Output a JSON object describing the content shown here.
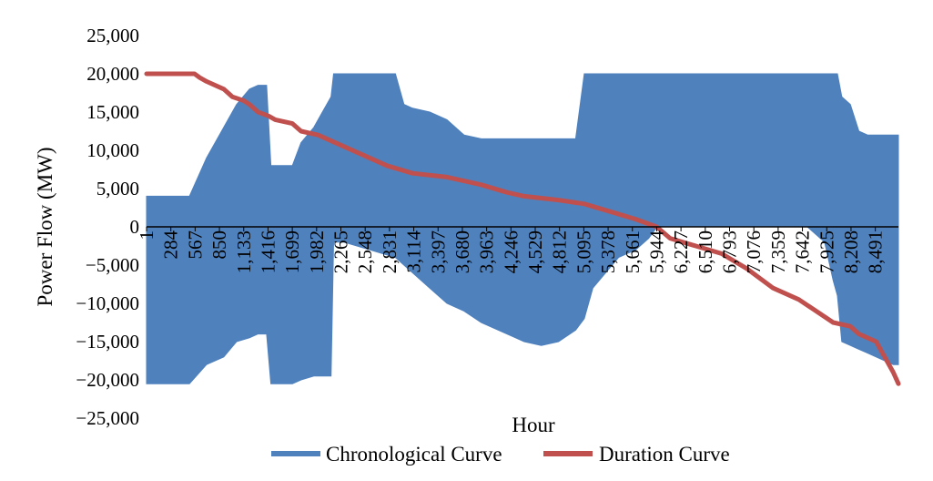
{
  "chart_data": {
    "type": "line",
    "title": "",
    "xlabel": "Hour",
    "ylabel": "Power Flow (MW)",
    "ylim": [
      -25000,
      25000
    ],
    "xlim": [
      1,
      8760
    ],
    "yticks": [
      25000,
      20000,
      15000,
      10000,
      5000,
      0,
      -5000,
      -10000,
      -15000,
      -20000,
      -25000
    ],
    "ytick_labels": [
      "25,000",
      "20,000",
      "15,000",
      "10,000",
      "5,000",
      "0",
      "−5,000",
      "−10,000",
      "−15,000",
      "−20,000",
      "−25,000"
    ],
    "xticks": [
      1,
      284,
      567,
      850,
      1133,
      1416,
      1699,
      1982,
      2265,
      2548,
      2831,
      3114,
      3397,
      3680,
      3963,
      4246,
      4529,
      4812,
      5095,
      5378,
      5661,
      5944,
      6227,
      6510,
      6793,
      7076,
      7359,
      7642,
      7925,
      8208,
      8491
    ],
    "xtick_labels": [
      "1",
      "284",
      "567",
      "850",
      "1,133",
      "1,416",
      "1,699",
      "1,982",
      "2,265",
      "2,548",
      "2,831",
      "3,114",
      "3,397",
      "3,680",
      "3,963",
      "4,246",
      "4,529",
      "4,812",
      "5,095",
      "5,378",
      "5,661",
      "5,944",
      "6,227",
      "6,510",
      "6,793",
      "7,076",
      "7,359",
      "7,642",
      "7,925",
      "8,208",
      "8,491"
    ],
    "grid": false,
    "legend": "bottom",
    "series": [
      {
        "name": "Chronological Curve",
        "color": "#4f81bd",
        "style": "band",
        "x": [
          1,
          200,
          500,
          700,
          900,
          1050,
          1200,
          1300,
          1400,
          1450,
          1550,
          1700,
          1800,
          1950,
          2050,
          2150,
          2180,
          2300,
          2600,
          2900,
          3000,
          3100,
          3300,
          3500,
          3700,
          3900,
          4100,
          4300,
          4400,
          4600,
          4800,
          5000,
          5100,
          5200,
          5500,
          5700,
          5850,
          5950,
          6300,
          6600,
          6800,
          6900,
          7000,
          7100,
          7300,
          7500,
          7700,
          7900,
          8000,
          8050,
          8100,
          8200,
          8300,
          8400,
          8500,
          8600,
          8700,
          8760
        ],
        "upper": [
          4000,
          4000,
          4000,
          9000,
          13000,
          16000,
          18000,
          18500,
          18500,
          8000,
          8000,
          8000,
          11000,
          13000,
          15000,
          17000,
          20000,
          20000,
          20000,
          20000,
          16000,
          15500,
          15000,
          14000,
          12000,
          11500,
          11500,
          11500,
          11500,
          11500,
          11500,
          11500,
          20000,
          20000,
          20000,
          20000,
          20000,
          20000,
          20000,
          20000,
          20000,
          20000,
          20000,
          20000,
          20000,
          20000,
          20000,
          20000,
          20000,
          20000,
          17000,
          16000,
          12500,
          12000,
          12000,
          12000,
          12000,
          12000
        ],
        "lower": [
          -20500,
          -20500,
          -20500,
          -18000,
          -17000,
          -15000,
          -14500,
          -14000,
          -14000,
          -20500,
          -20500,
          -20500,
          -20000,
          -19500,
          -19500,
          -19500,
          -2000,
          -2000,
          -3000,
          -4000,
          -5000,
          -6000,
          -8000,
          -10000,
          -11000,
          -12500,
          -13500,
          -14500,
          -15000,
          -15500,
          -15000,
          -13500,
          -12000,
          -8000,
          -4000,
          -3000,
          -1500,
          0,
          0,
          0,
          0,
          0,
          0,
          0,
          0,
          0,
          0,
          -2000,
          -7000,
          -9000,
          -15000,
          -15500,
          -16000,
          -16500,
          -17000,
          -17500,
          -18000,
          -18000
        ]
      },
      {
        "name": "Duration Curve",
        "color": "#c0504d",
        "style": "line",
        "x": [
          1,
          560,
          620,
          700,
          900,
          1000,
          1130,
          1200,
          1300,
          1420,
          1500,
          1700,
          1800,
          2000,
          2300,
          2500,
          2800,
          3100,
          3500,
          3900,
          4200,
          4400,
          4800,
          5100,
          5400,
          5700,
          5944,
          6100,
          6400,
          6700,
          7000,
          7300,
          7600,
          8000,
          8200,
          8300,
          8500,
          8600,
          8700,
          8760
        ],
        "values": [
          20000,
          20000,
          19500,
          19000,
          18000,
          17000,
          16500,
          16000,
          15000,
          14500,
          14000,
          13500,
          12500,
          12000,
          10500,
          9500,
          8000,
          7000,
          6500,
          5500,
          4500,
          4000,
          3500,
          3000,
          2000,
          1000,
          0,
          -1500,
          -2500,
          -3500,
          -5500,
          -8000,
          -9500,
          -12500,
          -13000,
          -14000,
          -15000,
          -17000,
          -19000,
          -20500
        ]
      }
    ]
  }
}
